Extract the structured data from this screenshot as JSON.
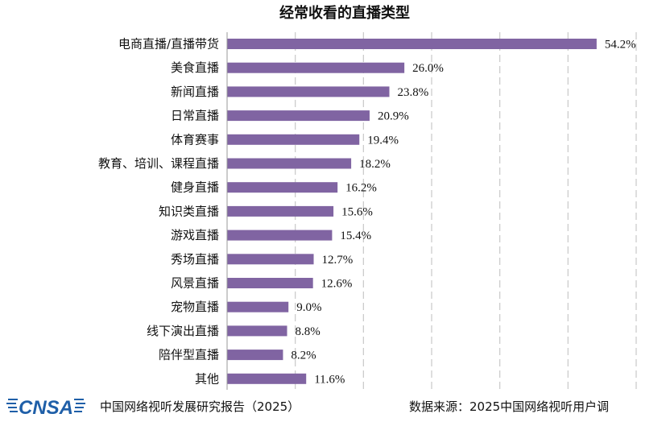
{
  "chart_data": {
    "type": "bar",
    "orientation": "horizontal",
    "title": "经常收看的直播类型",
    "categories": [
      "电商直播/直播带货",
      "美食直播",
      "新闻直播",
      "日常直播",
      "体育赛事",
      "教育、培训、课程直播",
      "健身直播",
      "知识类直播",
      "游戏直播",
      "秀场直播",
      "风景直播",
      "宠物直播",
      "线下演出直播",
      "陪伴型直播",
      "其他"
    ],
    "values": [
      54.2,
      26.0,
      23.8,
      20.9,
      19.4,
      18.2,
      16.2,
      15.6,
      15.4,
      12.7,
      12.6,
      9.0,
      8.8,
      8.2,
      11.6
    ],
    "value_labels": [
      "54.2%",
      "26.0%",
      "23.8%",
      "20.9%",
      "19.4%",
      "18.2%",
      "16.2%",
      "15.6%",
      "15.4%",
      "12.7%",
      "12.6%",
      "9.0%",
      "8.8%",
      "8.2%",
      "11.6%"
    ],
    "xlim": [
      0,
      60
    ],
    "grid": true,
    "bar_color": "#8064a2"
  },
  "footer": {
    "logo_text": "CNSA",
    "report": "中国网络视听发展研究报告（2025）",
    "source": "数据来源：2025中国网络视听用户调"
  },
  "colors": {
    "logo_blue": "#1f5fa8"
  }
}
